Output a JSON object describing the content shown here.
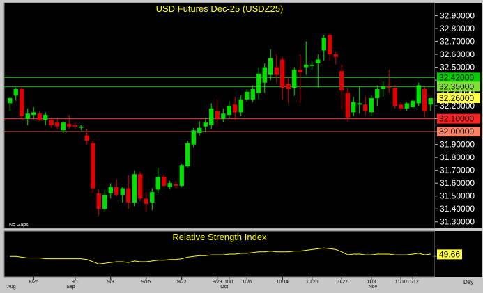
{
  "price_panel": {
    "title": "USD Futures Dec-25 (USDZ25)",
    "note": "No Gaps"
  },
  "rsi_panel": {
    "title": "Relative Strength Index",
    "current_label": "49.66"
  },
  "footer": {
    "period": "Day"
  },
  "colors": {
    "background": "#000000",
    "up": "#00e000",
    "down": "#e00000",
    "title": "#ffff00",
    "rsi_line": "#ffff00",
    "green_line": "#00c000",
    "red_line": "#ff3030",
    "salmon_line": "#ff9080"
  },
  "chart_data": [
    {
      "type": "candlestick",
      "title": "USD Futures Dec-25 (USDZ25)",
      "ylim": [
        31.25,
        33.0
      ],
      "y_ticks": [
        "32.90000",
        "32.80000",
        "32.70000",
        "32.60000",
        "32.50000",
        "32.40000",
        "32.30000",
        "32.20000",
        "32.10000",
        "32.00000",
        "31.90000",
        "31.80000",
        "31.70000",
        "31.60000",
        "31.50000",
        "31.40000",
        "31.30000"
      ],
      "x_ticks": [
        {
          "label": "8/25",
          "index": 4
        },
        {
          "label": "9/1",
          "index": 11
        },
        {
          "label": "9/8",
          "index": 17
        },
        {
          "label": "9/15",
          "index": 23
        },
        {
          "label": "9/22",
          "index": 29
        },
        {
          "label": "9/29",
          "index": 35
        },
        {
          "label": "10/1",
          "index": 37
        },
        {
          "label": "10/6",
          "index": 40
        },
        {
          "label": "10/14",
          "index": 46
        },
        {
          "label": "10/20",
          "index": 51
        },
        {
          "label": "10/27",
          "index": 56
        },
        {
          "label": "11/3",
          "index": 61
        },
        {
          "label": "11/10",
          "index": 66
        },
        {
          "label": "11/12",
          "index": 68
        }
      ],
      "month_labels": [
        {
          "label": "Aug",
          "index": 0
        },
        {
          "label": "Sep",
          "index": 10
        },
        {
          "label": "Oct",
          "index": 36
        },
        {
          "label": "Nov",
          "index": 61
        }
      ],
      "candles": [
        {
          "o": 32.22,
          "h": 32.27,
          "l": 32.16,
          "c": 32.26
        },
        {
          "o": 32.28,
          "h": 32.34,
          "l": 32.24,
          "c": 32.33
        },
        {
          "o": 32.33,
          "h": 32.35,
          "l": 32.1,
          "c": 32.12
        },
        {
          "o": 32.1,
          "h": 32.18,
          "l": 32.05,
          "c": 32.14
        },
        {
          "o": 32.13,
          "h": 32.19,
          "l": 32.1,
          "c": 32.15
        },
        {
          "o": 32.14,
          "h": 32.16,
          "l": 32.08,
          "c": 32.09
        },
        {
          "o": 32.09,
          "h": 32.15,
          "l": 32.05,
          "c": 32.13
        },
        {
          "o": 32.09,
          "h": 32.11,
          "l": 32.03,
          "c": 32.05
        },
        {
          "o": 32.07,
          "h": 32.1,
          "l": 32.02,
          "c": 32.04
        },
        {
          "o": 32.01,
          "h": 32.08,
          "l": 31.99,
          "c": 32.07
        },
        {
          "o": 32.06,
          "h": 32.13,
          "l": 32.02,
          "c": 32.04
        },
        {
          "o": 32.05,
          "h": 32.07,
          "l": 32.02,
          "c": 32.04
        },
        {
          "o": 32.03,
          "h": 32.05,
          "l": 32.01,
          "c": 32.04
        },
        {
          "o": 31.97,
          "h": 32.02,
          "l": 31.9,
          "c": 31.93
        },
        {
          "o": 31.91,
          "h": 31.93,
          "l": 31.52,
          "c": 31.56
        },
        {
          "o": 31.52,
          "h": 31.55,
          "l": 31.35,
          "c": 31.4
        },
        {
          "o": 31.4,
          "h": 31.55,
          "l": 31.38,
          "c": 31.51
        },
        {
          "o": 31.52,
          "h": 31.6,
          "l": 31.48,
          "c": 31.57
        },
        {
          "o": 31.57,
          "h": 31.63,
          "l": 31.5,
          "c": 31.51
        },
        {
          "o": 31.51,
          "h": 31.57,
          "l": 31.45,
          "c": 31.56
        },
        {
          "o": 31.56,
          "h": 31.66,
          "l": 31.4,
          "c": 31.45
        },
        {
          "o": 31.45,
          "h": 31.7,
          "l": 31.42,
          "c": 31.67
        },
        {
          "o": 31.67,
          "h": 31.69,
          "l": 31.46,
          "c": 31.48
        },
        {
          "o": 31.48,
          "h": 31.53,
          "l": 31.38,
          "c": 31.44
        },
        {
          "o": 31.45,
          "h": 31.56,
          "l": 31.39,
          "c": 31.53
        },
        {
          "o": 31.55,
          "h": 31.72,
          "l": 31.52,
          "c": 31.65
        },
        {
          "o": 31.65,
          "h": 31.67,
          "l": 31.57,
          "c": 31.58
        },
        {
          "o": 31.57,
          "h": 31.62,
          "l": 31.55,
          "c": 31.6
        },
        {
          "o": 31.59,
          "h": 31.62,
          "l": 31.56,
          "c": 31.58
        },
        {
          "o": 31.58,
          "h": 31.75,
          "l": 31.57,
          "c": 31.74
        },
        {
          "o": 31.73,
          "h": 31.93,
          "l": 31.72,
          "c": 31.91
        },
        {
          "o": 31.9,
          "h": 32.03,
          "l": 31.88,
          "c": 32.01
        },
        {
          "o": 31.99,
          "h": 32.08,
          "l": 31.97,
          "c": 32.03
        },
        {
          "o": 32.04,
          "h": 32.1,
          "l": 32.0,
          "c": 32.07
        },
        {
          "o": 32.05,
          "h": 32.22,
          "l": 32.02,
          "c": 32.18
        },
        {
          "o": 32.16,
          "h": 32.25,
          "l": 32.05,
          "c": 32.1
        },
        {
          "o": 32.1,
          "h": 32.18,
          "l": 32.07,
          "c": 32.14
        },
        {
          "o": 32.13,
          "h": 32.24,
          "l": 32.1,
          "c": 32.2
        },
        {
          "o": 32.21,
          "h": 32.27,
          "l": 32.09,
          "c": 32.15
        },
        {
          "o": 32.15,
          "h": 32.28,
          "l": 32.12,
          "c": 32.25
        },
        {
          "o": 32.25,
          "h": 32.33,
          "l": 32.23,
          "c": 32.31
        },
        {
          "o": 32.25,
          "h": 32.36,
          "l": 32.23,
          "c": 32.33
        },
        {
          "o": 32.3,
          "h": 32.5,
          "l": 32.25,
          "c": 32.45
        },
        {
          "o": 32.38,
          "h": 32.53,
          "l": 32.3,
          "c": 32.5
        },
        {
          "o": 32.44,
          "h": 32.64,
          "l": 32.4,
          "c": 32.57
        },
        {
          "o": 32.5,
          "h": 32.6,
          "l": 32.38,
          "c": 32.44
        },
        {
          "o": 32.56,
          "h": 32.58,
          "l": 32.25,
          "c": 32.34
        },
        {
          "o": 32.37,
          "h": 32.42,
          "l": 32.22,
          "c": 32.33
        },
        {
          "o": 32.34,
          "h": 32.5,
          "l": 32.28,
          "c": 32.48
        },
        {
          "o": 32.48,
          "h": 32.6,
          "l": 32.22,
          "c": 32.46
        },
        {
          "o": 32.5,
          "h": 32.7,
          "l": 32.44,
          "c": 32.52
        },
        {
          "o": 32.51,
          "h": 32.55,
          "l": 32.48,
          "c": 32.52
        },
        {
          "o": 32.53,
          "h": 32.6,
          "l": 32.34,
          "c": 32.56
        },
        {
          "o": 32.63,
          "h": 32.75,
          "l": 32.55,
          "c": 32.73
        },
        {
          "o": 32.75,
          "h": 32.76,
          "l": 32.55,
          "c": 32.6
        },
        {
          "o": 32.6,
          "h": 32.62,
          "l": 32.52,
          "c": 32.58
        },
        {
          "o": 32.47,
          "h": 32.52,
          "l": 32.17,
          "c": 32.32
        },
        {
          "o": 32.3,
          "h": 32.34,
          "l": 32.08,
          "c": 32.11
        },
        {
          "o": 32.15,
          "h": 32.27,
          "l": 32.12,
          "c": 32.23
        },
        {
          "o": 32.21,
          "h": 32.35,
          "l": 32.14,
          "c": 32.22
        },
        {
          "o": 32.21,
          "h": 32.27,
          "l": 32.13,
          "c": 32.16
        },
        {
          "o": 32.15,
          "h": 32.28,
          "l": 32.12,
          "c": 32.26
        },
        {
          "o": 32.26,
          "h": 32.36,
          "l": 32.2,
          "c": 32.33
        },
        {
          "o": 32.33,
          "h": 32.39,
          "l": 32.27,
          "c": 32.35
        },
        {
          "o": 32.35,
          "h": 32.48,
          "l": 32.3,
          "c": 32.34
        },
        {
          "o": 32.34,
          "h": 32.36,
          "l": 32.18,
          "c": 32.2
        },
        {
          "o": 32.21,
          "h": 32.23,
          "l": 32.16,
          "c": 32.18
        },
        {
          "o": 32.18,
          "h": 32.23,
          "l": 32.16,
          "c": 32.22
        },
        {
          "o": 32.19,
          "h": 32.25,
          "l": 32.18,
          "c": 32.24
        },
        {
          "o": 32.22,
          "h": 32.38,
          "l": 32.2,
          "c": 32.36
        },
        {
          "o": 32.33,
          "h": 32.35,
          "l": 32.11,
          "c": 32.16
        },
        {
          "o": 32.21,
          "h": 32.26,
          "l": 32.16,
          "c": 32.26
        }
      ],
      "horizontal_lines": [
        {
          "value": 32.42,
          "label": "32.42000",
          "color": "#00c000",
          "label_bg": "#00d000"
        },
        {
          "value": 32.35,
          "label": "32.35000",
          "color": "#00c000",
          "label_bg": "#80e030"
        },
        {
          "value": 32.1,
          "label": "32.10000",
          "color": "#ff3030",
          "label_bg": "#ff2020"
        },
        {
          "value": 32.0,
          "label": "32.00000",
          "color": "#ff9080",
          "label_bg": "#ff8060"
        }
      ],
      "last_price": {
        "value": 32.26,
        "label": "32.26000"
      },
      "grid": false
    },
    {
      "type": "line",
      "title": "Relative Strength Index",
      "series": [
        {
          "name": "RSI",
          "values": [
            47,
            47,
            46,
            45,
            45,
            45,
            44,
            44,
            44,
            44,
            44,
            44,
            44,
            43,
            40,
            37,
            38,
            39,
            40,
            40,
            39,
            41,
            40,
            40,
            41,
            42,
            42,
            43,
            43,
            44,
            46,
            47,
            48,
            48,
            49,
            49,
            49,
            50,
            50,
            51,
            51,
            52,
            53,
            53,
            54,
            53,
            53,
            53,
            54,
            54,
            55,
            56,
            57,
            58,
            57,
            56,
            53,
            49,
            50,
            50,
            49,
            49,
            50,
            50,
            50,
            49,
            49,
            49,
            50,
            51,
            49,
            50
          ]
        }
      ],
      "ylim": [
        20,
        80
      ],
      "last_value": 49.66
    }
  ]
}
